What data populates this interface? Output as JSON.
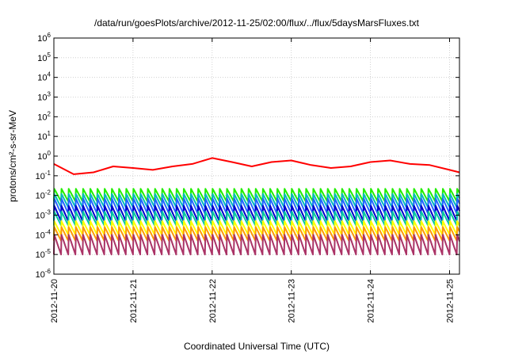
{
  "chart_data": {
    "type": "line",
    "title": "/data/run/goesPlots/archive/2012-11-25/02:00/flux/../flux/5daysMarsFluxes.txt",
    "xlabel": "Coordinated Universal Time (UTC)",
    "ylabel": "protons/cm²-s-sr-MeV",
    "y_scale": "log",
    "ylim": [
      1e-06,
      1000000.0
    ],
    "y_ticks": [
      {
        "base": "10",
        "exp": "-6"
      },
      {
        "base": "10",
        "exp": "-5"
      },
      {
        "base": "10",
        "exp": "-4"
      },
      {
        "base": "10",
        "exp": "-3"
      },
      {
        "base": "10",
        "exp": "-2"
      },
      {
        "base": "10",
        "exp": "-1"
      },
      {
        "base": "10",
        "exp": "0"
      },
      {
        "base": "10",
        "exp": "1"
      },
      {
        "base": "10",
        "exp": "2"
      },
      {
        "base": "10",
        "exp": "3"
      },
      {
        "base": "10",
        "exp": "4"
      },
      {
        "base": "10",
        "exp": "5"
      },
      {
        "base": "10",
        "exp": "6"
      }
    ],
    "x_ticks": [
      "2012-11-20",
      "2012-11-21",
      "2012-11-22",
      "2012-11-23",
      "2012-11-24",
      "2012-11-25"
    ],
    "xlim": [
      "2012-11-20T00:00",
      "2012-11-25T03:00"
    ],
    "grid": true,
    "series": [
      {
        "color": "#ff0000",
        "x": [
          "2012-11-20T00:00",
          "2012-11-20T06:00",
          "2012-11-20T12:00",
          "2012-11-20T18:00",
          "2012-11-21T00:00",
          "2012-11-21T06:00",
          "2012-11-21T12:00",
          "2012-11-21T18:00",
          "2012-11-22T00:00",
          "2012-11-22T06:00",
          "2012-11-22T12:00",
          "2012-11-22T18:00",
          "2012-11-23T00:00",
          "2012-11-23T06:00",
          "2012-11-23T12:00",
          "2012-11-23T18:00",
          "2012-11-24T00:00",
          "2012-11-24T06:00",
          "2012-11-24T12:00",
          "2012-11-24T18:00",
          "2012-11-25T00:00",
          "2012-11-25T03:00"
        ],
        "y": [
          0.4,
          0.12,
          0.15,
          0.3,
          0.25,
          0.2,
          0.3,
          0.4,
          0.8,
          0.5,
          0.3,
          0.5,
          0.6,
          0.35,
          0.25,
          0.3,
          0.5,
          0.6,
          0.4,
          0.35,
          0.2,
          0.15
        ]
      },
      {
        "color": "#22ee00",
        "sawtooth": true,
        "peak": 0.022,
        "trough": 0.005
      },
      {
        "color": "#00bbbb",
        "sawtooth": true,
        "peak": 0.012,
        "trough": 0.0025
      },
      {
        "color": "#2266ff",
        "sawtooth": true,
        "peak": 0.007,
        "trough": 0.0012
      },
      {
        "color": "#0000cc",
        "sawtooth": true,
        "peak": 0.003,
        "trough": 0.0005
      },
      {
        "color": "#00c8a0",
        "sawtooth": true,
        "peak": 0.0015,
        "trough": 0.0003
      },
      {
        "color": "#ffff00",
        "sawtooth": true,
        "peak": 0.0005,
        "trough": 0.0001
      },
      {
        "color": "#ff9900",
        "sawtooth": true,
        "peak": 0.00025,
        "trough": 5e-05
      },
      {
        "color": "#aa3366",
        "sawtooth": true,
        "peak": 0.0001,
        "trough": 1e-05
      }
    ]
  }
}
